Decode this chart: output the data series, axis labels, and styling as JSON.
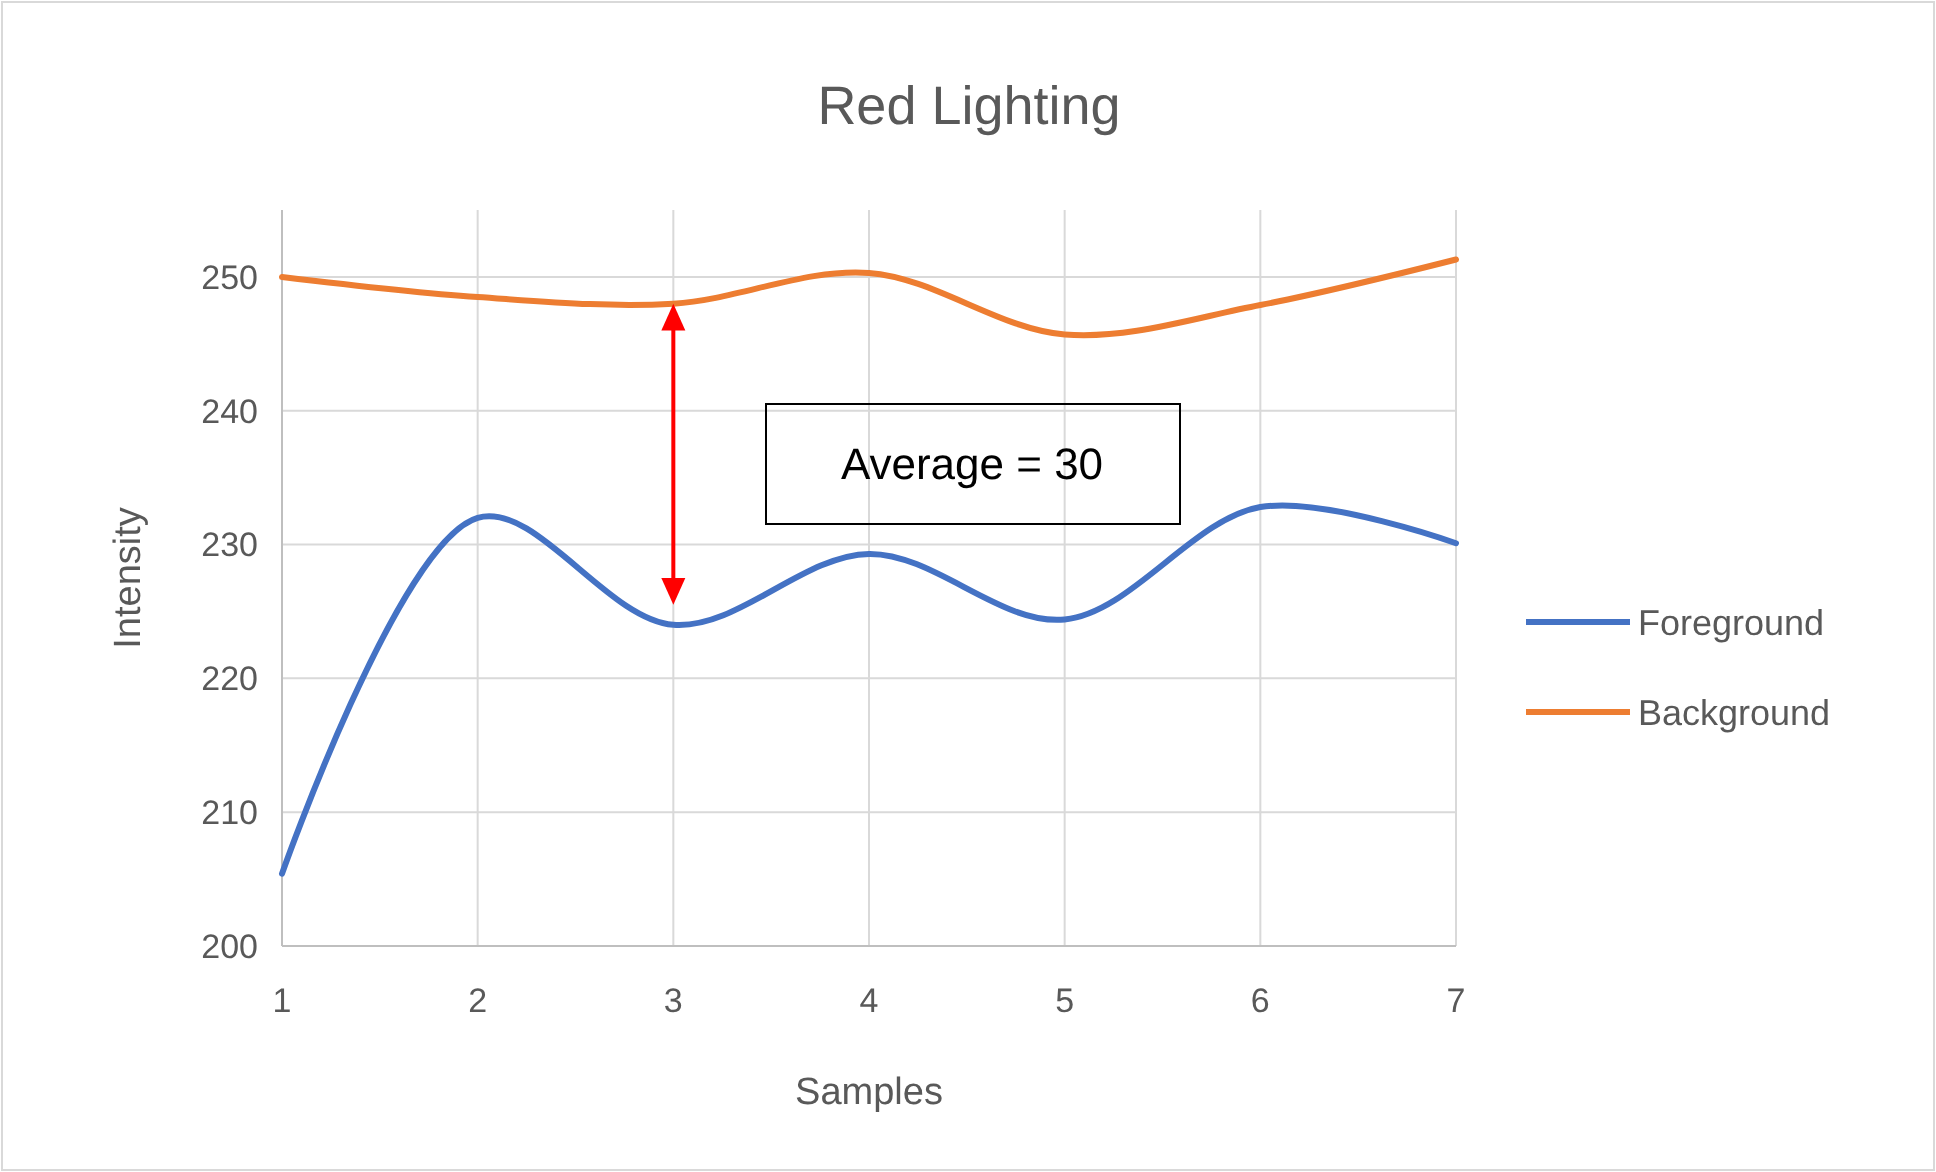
{
  "chart_data": {
    "type": "line",
    "title": "Red Lighting",
    "xlabel": "Samples",
    "ylabel": "Intensity",
    "x": [
      1,
      2,
      3,
      4,
      5,
      6,
      7
    ],
    "series": [
      {
        "name": "Foreground",
        "color": "#4472c4",
        "values": [
          205.4,
          232,
          224,
          229.3,
          224.4,
          232.8,
          230.1
        ]
      },
      {
        "name": "Background",
        "color": "#ed7d31",
        "values": [
          250,
          248.5,
          248,
          250.3,
          245.7,
          247.9,
          251.3
        ]
      }
    ],
    "xlim": [
      1,
      7
    ],
    "xticks": [
      1,
      2,
      3,
      4,
      5,
      6,
      7
    ],
    "ylim": [
      200,
      255
    ],
    "yticks": [
      200,
      210,
      220,
      230,
      240,
      250
    ],
    "grid": true,
    "legend": "right",
    "marker": "none",
    "line_style": "solid",
    "annotations": [
      "Average = 30"
    ]
  }
}
